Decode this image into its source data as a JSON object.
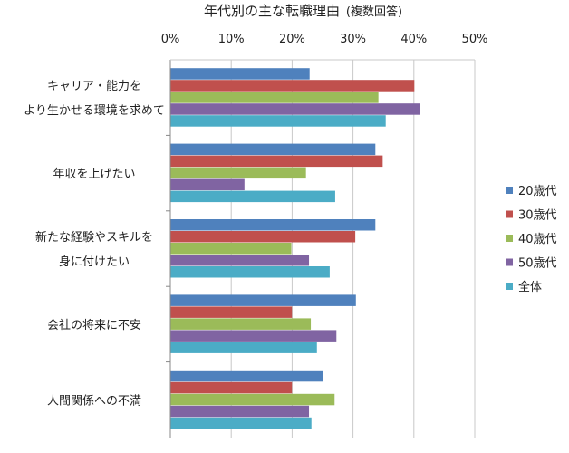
{
  "chart_data": {
    "type": "bar",
    "orientation": "horizontal",
    "title": "年代別の主な転職理由",
    "subtitle": "(複数回答)",
    "categories": [
      [
        "キャリア・能力を",
        "より生かせる環境を求めて"
      ],
      [
        "年収を上げたい"
      ],
      [
        "新たな経験やスキルを",
        "身に付けたい"
      ],
      [
        "会社の将来に不安"
      ],
      [
        "人間関係への不満"
      ]
    ],
    "series": [
      {
        "name": "20歳代",
        "color": "#4F81BD",
        "values": [
          22.8,
          33.6,
          33.6,
          30.4,
          25.0
        ]
      },
      {
        "name": "30歳代",
        "color": "#C0504D",
        "values": [
          40.0,
          34.8,
          30.3,
          19.9,
          19.9
        ]
      },
      {
        "name": "40歳代",
        "color": "#9BBB59",
        "values": [
          34.1,
          22.2,
          19.8,
          23.0,
          26.9
        ]
      },
      {
        "name": "50歳代",
        "color": "#8064A2",
        "values": [
          40.9,
          12.1,
          22.7,
          27.2,
          22.7
        ]
      },
      {
        "name": "全体",
        "color": "#4BACC6",
        "values": [
          35.3,
          27.0,
          26.1,
          24.0,
          23.1
        ]
      }
    ],
    "xticks": [
      "0%",
      "10%",
      "20%",
      "30%",
      "40%",
      "50%"
    ],
    "xlim": [
      0,
      50
    ],
    "xlabel": "",
    "ylabel": "",
    "grid": true,
    "legend": "right"
  }
}
